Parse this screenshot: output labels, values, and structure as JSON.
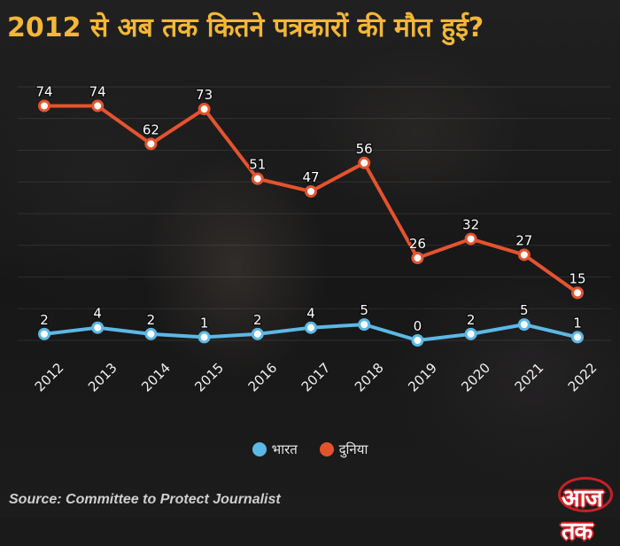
{
  "title": "2012 से अब तक कितने पत्रकारों की मौत हुई?",
  "source": "Source: Committee to Protect Journalist",
  "logo": {
    "text": "आज तक"
  },
  "colors": {
    "india": "#5cb8e6",
    "world": "#e5532e",
    "title": "#f5b735",
    "logo": "#d8232a"
  },
  "chart_data": {
    "type": "line",
    "title": "2012 से अब तक कितने पत्रकारों की मौत हुई?",
    "x": [
      "2012",
      "2013",
      "2014",
      "2015",
      "2016",
      "2017",
      "2018",
      "2019",
      "2020",
      "2021",
      "2022"
    ],
    "ylim": [
      0,
      80
    ],
    "grid": true,
    "legend_position": "bottom-center",
    "series": [
      {
        "name": "भारत",
        "color": "#5cb8e6",
        "values": [
          2,
          4,
          2,
          1,
          2,
          4,
          5,
          0,
          2,
          5,
          1
        ]
      },
      {
        "name": "दुनिया",
        "color": "#e5532e",
        "values": [
          74,
          74,
          62,
          73,
          51,
          47,
          56,
          26,
          32,
          27,
          15
        ]
      }
    ]
  }
}
